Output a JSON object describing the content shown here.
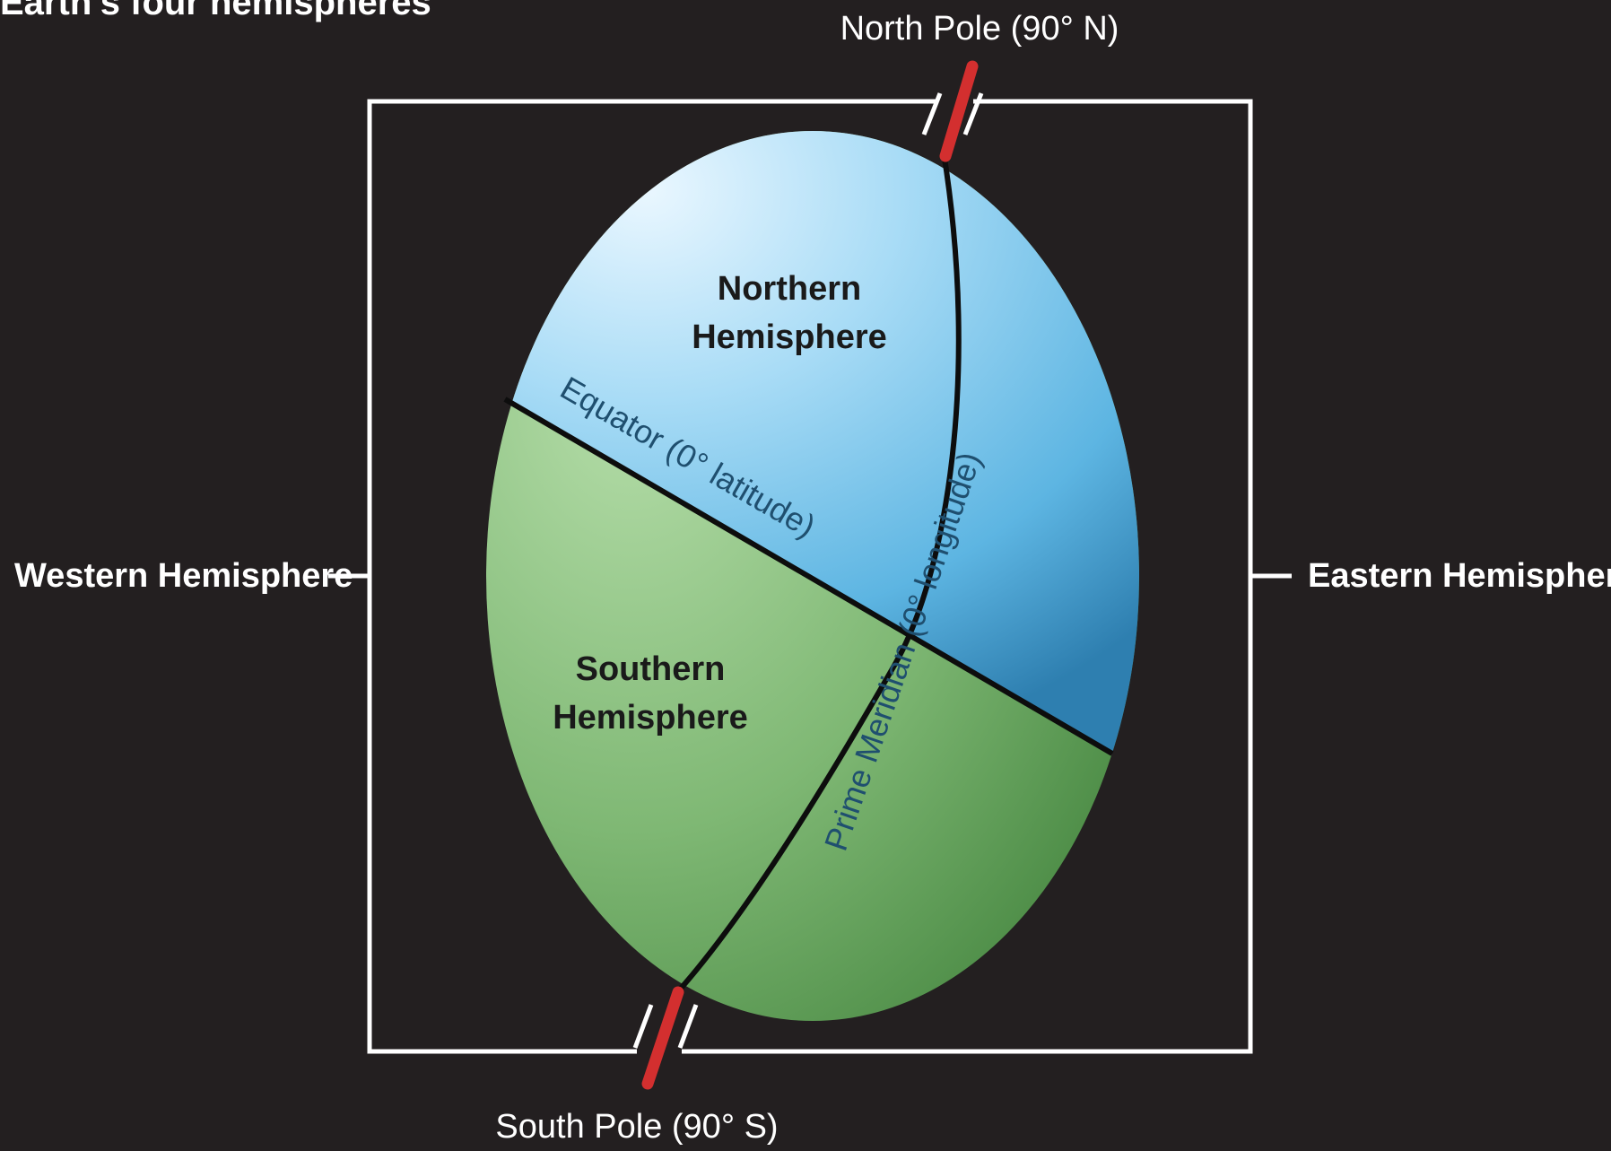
{
  "title": "Earth's four hemispheres",
  "labels": {
    "north_pole": "North Pole (90° N)",
    "south_pole": "South Pole (90° S)",
    "western": "Western Hemisphere",
    "eastern": "Eastern Hemisphere",
    "northern_line1": "Northern",
    "northern_line2": "Hemisphere",
    "southern_line1": "Southern",
    "southern_line2": "Hemisphere",
    "equator": "Equator (0° latitude)",
    "prime_meridian": "Prime Meridian (0° longitude)"
  },
  "colors": {
    "background": "#231f20",
    "northern": "#5db8e6",
    "southern": "#5a9a52",
    "axis": "#d32f2f",
    "frame": "#ffffff"
  }
}
